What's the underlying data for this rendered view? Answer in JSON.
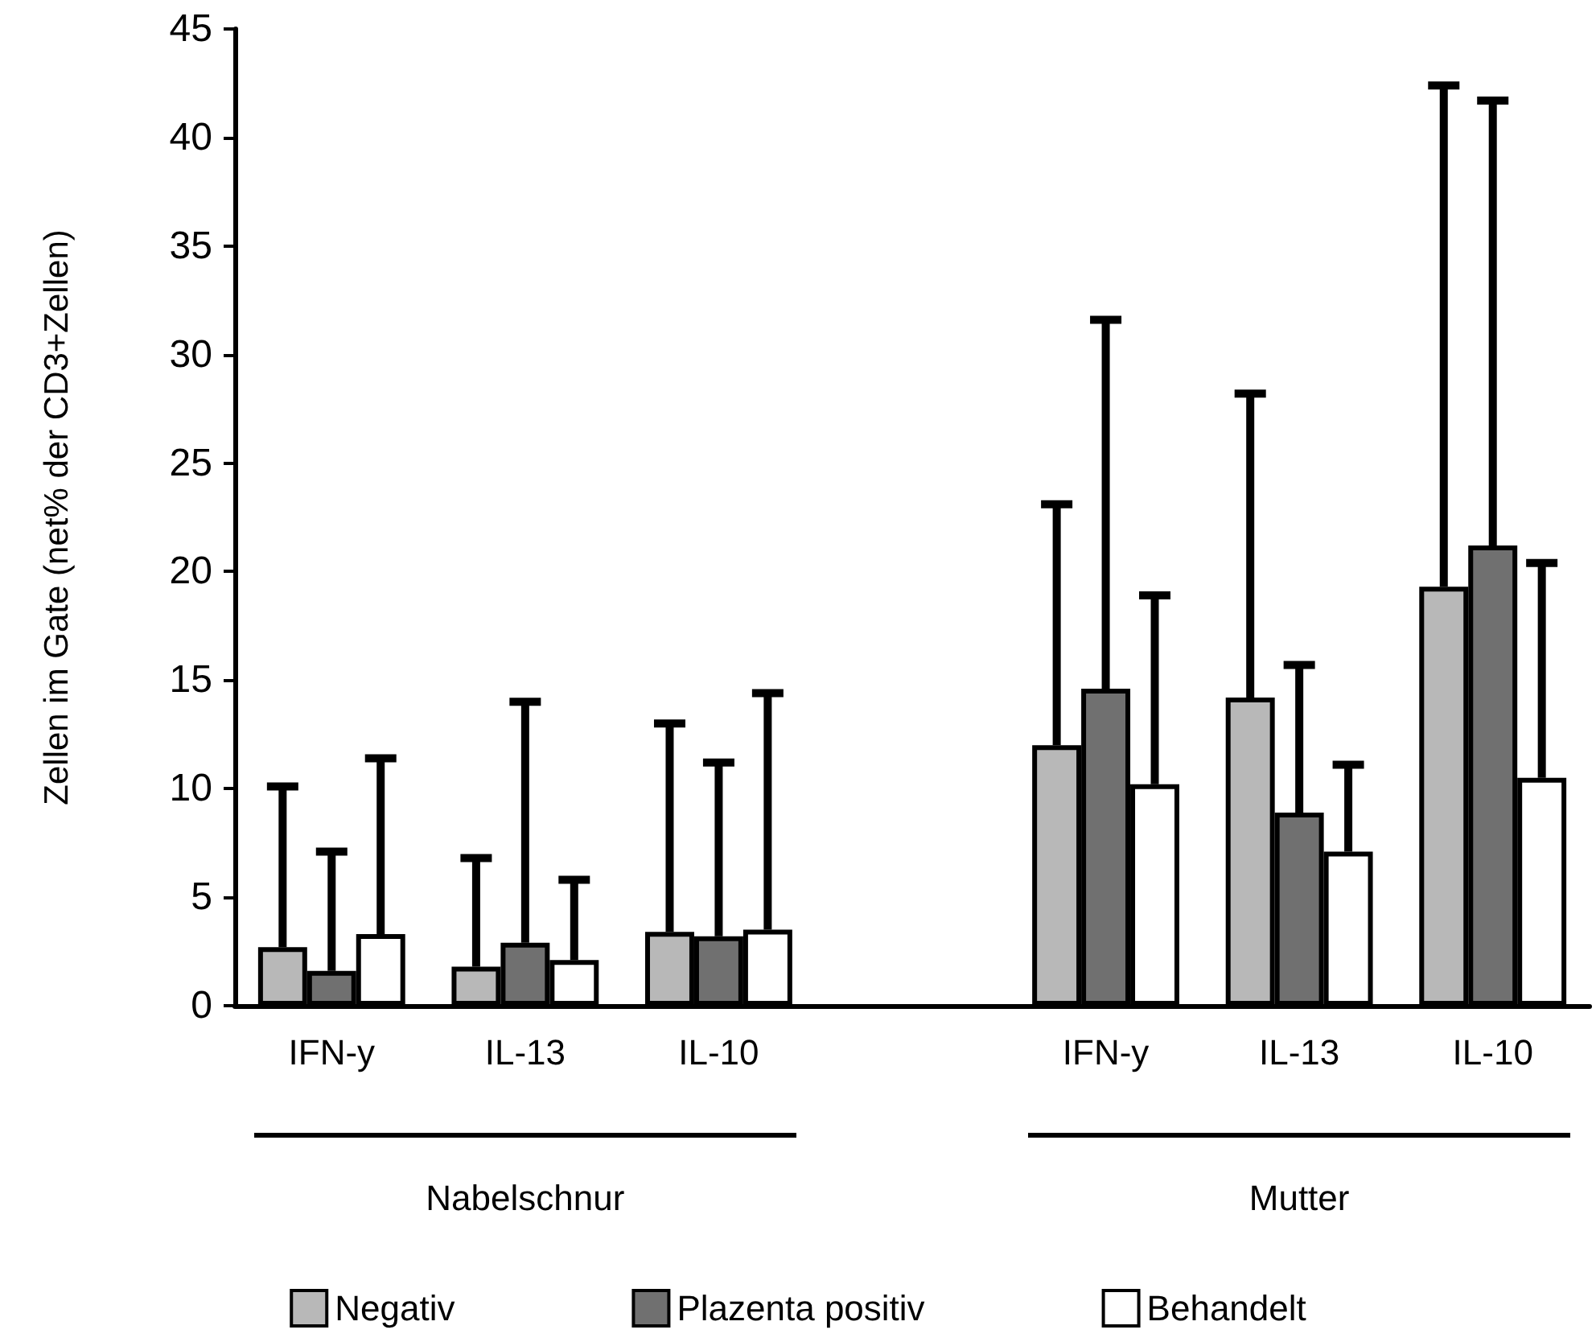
{
  "chart_data": {
    "type": "bar",
    "ylabel": "Zellen im Gate (net% der CD3+Zellen)",
    "categories": [
      "IFN-y",
      "IL-13",
      "IL-10",
      null,
      "IFN-y",
      "IL-13",
      "IL-10"
    ],
    "series": [
      {
        "name": "Negativ",
        "color": "#b8b8b8",
        "values": [
          2.7,
          1.8,
          3.4,
          null,
          12.0,
          14.2,
          19.3
        ],
        "errors": [
          [
            2.7,
            10.1
          ],
          [
            1.8,
            6.8
          ],
          [
            3.4,
            13.0
          ],
          null,
          [
            12.0,
            23.1
          ],
          [
            14.2,
            28.2
          ],
          [
            19.3,
            42.4
          ]
        ]
      },
      {
        "name": "Plazenta positiv",
        "color": "#707070",
        "values": [
          1.6,
          2.9,
          3.2,
          null,
          14.6,
          8.9,
          21.2
        ],
        "errors": [
          [
            1.6,
            7.1
          ],
          [
            2.9,
            14.0
          ],
          [
            3.2,
            11.2
          ],
          null,
          [
            14.6,
            31.6
          ],
          [
            8.9,
            15.7
          ],
          [
            21.2,
            41.7
          ]
        ]
      },
      {
        "name": "Behandelt",
        "color": "#ffffff",
        "values": [
          3.3,
          2.1,
          3.5,
          null,
          10.2,
          7.1,
          10.5
        ],
        "errors": [
          [
            3.3,
            11.4
          ],
          [
            2.1,
            5.8
          ],
          [
            3.5,
            14.4
          ],
          null,
          [
            10.2,
            18.9
          ],
          [
            7.1,
            11.1
          ],
          [
            10.5,
            20.4
          ]
        ]
      }
    ],
    "ylim": [
      0,
      45
    ],
    "yticks": [
      0,
      5,
      10,
      15,
      20,
      25,
      30,
      35,
      40,
      45
    ],
    "grid": false,
    "legend": "bottom",
    "annotations": [
      "Nabelschnur",
      "Mutter"
    ]
  }
}
